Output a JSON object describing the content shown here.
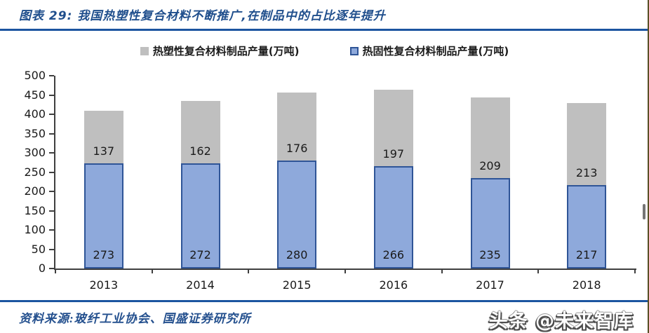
{
  "header": {
    "title": "图表 29: 我国热塑性复合材料不断推广,在制品中的占比逐年提升"
  },
  "chart_data": {
    "type": "bar",
    "stacked": true,
    "categories": [
      "2013",
      "2014",
      "2015",
      "2016",
      "2017",
      "2018"
    ],
    "series": [
      {
        "name": "热固性复合材料制品产量(万吨)",
        "stack_position": "bottom",
        "fill": "#8EA9DB",
        "border": "#2F5597",
        "values": [
          273,
          272,
          280,
          266,
          235,
          217
        ]
      },
      {
        "name": "热塑性复合材料制品产量(万吨)",
        "stack_position": "top",
        "fill": "#BFBFBF",
        "border": "#BFBFBF",
        "values": [
          137,
          162,
          176,
          197,
          209,
          213
        ]
      }
    ],
    "ylim": [
      0,
      500
    ],
    "ytick_step": 50,
    "legend_position": "top",
    "grid": false,
    "value_labels": "inside-base"
  },
  "footer": {
    "source": "资料来源:玻纤工业协会、国盛证券研究所",
    "watermark": "头条 @未来智库"
  },
  "colors": {
    "accent_navy": "#1F4E8C",
    "rule_blue": "#1C55A0",
    "bar_blue_fill": "#8EA9DB",
    "bar_blue_border": "#2F5597",
    "bar_gray_fill": "#BFBFBF",
    "axis": "#3F3F3F",
    "label_text": "#1A1A1A"
  }
}
